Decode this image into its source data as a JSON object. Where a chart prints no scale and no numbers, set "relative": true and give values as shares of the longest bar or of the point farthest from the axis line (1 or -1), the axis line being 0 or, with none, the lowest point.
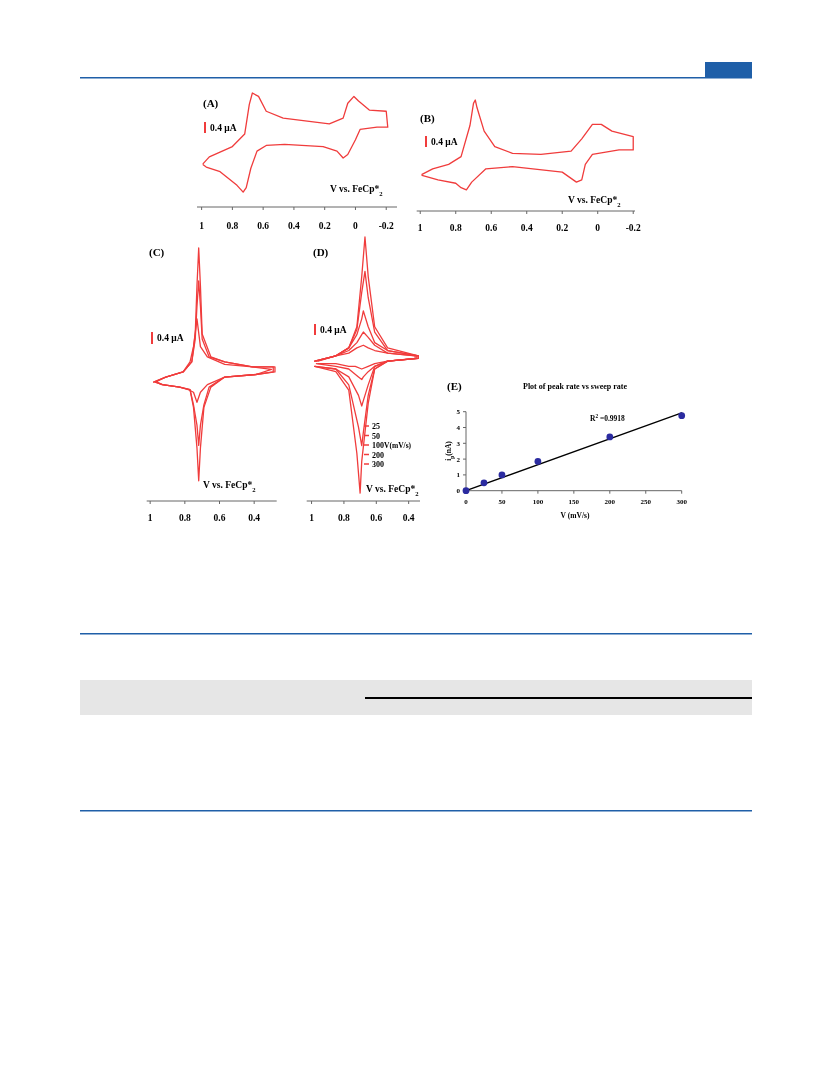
{
  "chart_data": [
    {
      "type": "line",
      "title": "(A)",
      "relative": true,
      "xlim": [
        1.03,
        -0.27
      ],
      "xticks": [
        1,
        0.8,
        0.6,
        0.4,
        0.2,
        0,
        -0.2
      ],
      "annotations": [
        "0.4 μA",
        "V vs. FeCp*$_{2}$"
      ],
      "series": [
        {
          "color": "#f03c3c",
          "x": [
            0.99,
            0.95,
            0.8,
            0.72,
            0.69,
            0.67,
            0.63,
            0.58,
            0.47,
            0.17,
            0.08,
            0.05,
            0.01,
            -0.02,
            -0.09,
            -0.2,
            -0.21,
            -0.14,
            -0.03,
            0.0,
            0.05,
            0.08,
            0.12,
            0.21,
            0.46,
            0.58,
            0.64,
            0.68,
            0.71,
            0.73,
            0.77,
            0.88,
            0.97,
            0.99
          ],
          "values": [
            0.38,
            0.44,
            0.53,
            0.64,
            0.9,
            1,
            0.97,
            0.84,
            0.78,
            0.73,
            0.78,
            0.91,
            0.97,
            0.93,
            0.85,
            0.84,
            0.7,
            0.7,
            0.68,
            0.59,
            0.46,
            0.43,
            0.49,
            0.53,
            0.55,
            0.54,
            0.49,
            0.34,
            0.17,
            0.13,
            0.19,
            0.31,
            0.35,
            0.37
          ]
        }
      ]
    },
    {
      "type": "line",
      "title": "(B)",
      "relative": true,
      "xlim": [
        1.02,
        -0.21
      ],
      "xticks": [
        1,
        0.8,
        0.6,
        0.4,
        0.2,
        0,
        -0.2
      ],
      "annotations": [
        "0.4 μA",
        "V vs. FeCp*$_{2}$"
      ],
      "series": [
        {
          "color": "#f03c3c",
          "x": [
            0.99,
            0.93,
            0.84,
            0.77,
            0.72,
            0.7,
            0.69,
            0.68,
            0.64,
            0.58,
            0.48,
            0.32,
            0.15,
            0.09,
            0.03,
            -0.02,
            -0.08,
            -0.2,
            -0.2,
            -0.12,
            0.03,
            0.07,
            0.09,
            0.12,
            0.2,
            0.48,
            0.63,
            0.71,
            0.74,
            0.77,
            0.8,
            0.9,
            0.99
          ],
          "values": [
            0.33,
            0.38,
            0.42,
            0.49,
            0.77,
            0.97,
            1,
            0.93,
            0.72,
            0.58,
            0.52,
            0.51,
            0.54,
            0.65,
            0.78,
            0.78,
            0.72,
            0.67,
            0.55,
            0.55,
            0.51,
            0.42,
            0.28,
            0.26,
            0.35,
            0.4,
            0.38,
            0.26,
            0.19,
            0.21,
            0.25,
            0.28,
            0.32
          ]
        }
      ]
    },
    {
      "type": "line",
      "title": "(C)",
      "relative": true,
      "xlim": [
        1.02,
        0.27
      ],
      "xticks": [
        1,
        0.8,
        0.6,
        0.4
      ],
      "annotations": [
        "0.4 μA",
        "V vs. FeCp*$_{2}$"
      ],
      "series": [
        {
          "color": "#f03c3c",
          "x": [
            0.98,
            0.91,
            0.81,
            0.76,
            0.74,
            0.73,
            0.72,
            0.71,
            0.7,
            0.65,
            0.57,
            0.41,
            0.28,
            0.28,
            0.39,
            0.57,
            0.65,
            0.69,
            0.71,
            0.72,
            0.73,
            0.75,
            0.77,
            0.83,
            0.93,
            0.97
          ],
          "values": [
            0.47,
            0.49,
            0.51,
            0.55,
            0.66,
            0.85,
            1,
            0.85,
            0.66,
            0.57,
            0.55,
            0.53,
            0.53,
            0.51,
            0.5,
            0.49,
            0.45,
            0.37,
            0.21,
            0.08,
            0.21,
            0.37,
            0.44,
            0.45,
            0.46,
            0.47
          ]
        },
        {
          "color": "#f03c3c",
          "x": [
            0.98,
            0.91,
            0.81,
            0.76,
            0.74,
            0.73,
            0.72,
            0.71,
            0.7,
            0.66,
            0.57,
            0.41,
            0.29,
            0.29,
            0.39,
            0.57,
            0.66,
            0.69,
            0.71,
            0.72,
            0.73,
            0.75,
            0.77,
            0.83,
            0.93,
            0.97
          ],
          "values": [
            0.47,
            0.49,
            0.51,
            0.55,
            0.64,
            0.77,
            0.87,
            0.77,
            0.64,
            0.57,
            0.55,
            0.53,
            0.53,
            0.51,
            0.5,
            0.49,
            0.45,
            0.38,
            0.3,
            0.22,
            0.3,
            0.38,
            0.44,
            0.45,
            0.46,
            0.47
          ]
        },
        {
          "color": "#f03c3c",
          "x": [
            0.97,
            0.91,
            0.81,
            0.77,
            0.75,
            0.73,
            0.71,
            0.67,
            0.57,
            0.41,
            0.3,
            0.39,
            0.57,
            0.67,
            0.71,
            0.73,
            0.75,
            0.78,
            0.83,
            0.93,
            0.96
          ],
          "values": [
            0.47,
            0.49,
            0.51,
            0.55,
            0.61,
            0.72,
            0.61,
            0.57,
            0.54,
            0.53,
            0.52,
            0.5,
            0.49,
            0.46,
            0.43,
            0.39,
            0.43,
            0.44,
            0.45,
            0.46,
            0.47
          ]
        }
      ]
    },
    {
      "type": "line",
      "title": "(D)",
      "relative": true,
      "xlim": [
        1.03,
        0.33
      ],
      "xticks": [
        1,
        0.8,
        0.6,
        0.4
      ],
      "annotations": [
        "0.4 μA",
        "V vs. FeCp*$_{2}$"
      ],
      "legend": "bottom right",
      "legend_title": "V(mV/s)",
      "series": [
        {
          "name": "25",
          "color": "#f03c3c",
          "x": [
            0.96,
            0.85,
            0.77,
            0.72,
            0.68,
            0.65,
            0.61,
            0.53,
            0.36,
            0.36,
            0.53,
            0.61,
            0.65,
            0.69,
            0.73,
            0.77,
            0.85,
            0.96
          ],
          "values": [
            0.53,
            0.55,
            0.56,
            0.58,
            0.59,
            0.58,
            0.57,
            0.56,
            0.55,
            0.54,
            0.53,
            0.52,
            0.51,
            0.5,
            0.51,
            0.51,
            0.52,
            0.52
          ]
        },
        {
          "name": "50",
          "color": "#f03c3c",
          "x": [
            0.97,
            0.85,
            0.77,
            0.72,
            0.69,
            0.68,
            0.65,
            0.61,
            0.53,
            0.35,
            0.35,
            0.53,
            0.61,
            0.65,
            0.68,
            0.69,
            0.71,
            0.77,
            0.85,
            0.97
          ],
          "values": [
            0.53,
            0.55,
            0.57,
            0.6,
            0.63,
            0.64,
            0.62,
            0.59,
            0.56,
            0.55,
            0.54,
            0.53,
            0.51,
            0.49,
            0.47,
            0.46,
            0.47,
            0.5,
            0.51,
            0.52
          ]
        },
        {
          "name": "100",
          "color": "#f03c3c",
          "x": [
            0.98,
            0.85,
            0.77,
            0.72,
            0.69,
            0.68,
            0.65,
            0.61,
            0.53,
            0.34,
            0.34,
            0.53,
            0.61,
            0.65,
            0.68,
            0.69,
            0.71,
            0.77,
            0.85,
            0.98
          ],
          "values": [
            0.53,
            0.55,
            0.58,
            0.63,
            0.69,
            0.72,
            0.66,
            0.6,
            0.57,
            0.55,
            0.54,
            0.53,
            0.51,
            0.44,
            0.38,
            0.36,
            0.4,
            0.47,
            0.5,
            0.51
          ]
        },
        {
          "name": "200",
          "color": "#f03c3c",
          "x": [
            0.98,
            0.85,
            0.77,
            0.72,
            0.69,
            0.67,
            0.65,
            0.61,
            0.53,
            0.34,
            0.34,
            0.53,
            0.61,
            0.65,
            0.68,
            0.69,
            0.71,
            0.77,
            0.85,
            0.98
          ],
          "values": [
            0.53,
            0.55,
            0.58,
            0.65,
            0.79,
            0.87,
            0.77,
            0.64,
            0.57,
            0.55,
            0.54,
            0.53,
            0.5,
            0.4,
            0.26,
            0.21,
            0.28,
            0.44,
            0.5,
            0.51
          ]
        },
        {
          "name": "300",
          "color": "#f03c3c",
          "x": [
            0.98,
            0.85,
            0.77,
            0.72,
            0.69,
            0.67,
            0.65,
            0.61,
            0.53,
            0.34,
            0.34,
            0.53,
            0.61,
            0.65,
            0.69,
            0.7,
            0.72,
            0.77,
            0.85,
            0.98
          ],
          "values": [
            0.53,
            0.55,
            0.58,
            0.66,
            0.85,
            1,
            0.85,
            0.66,
            0.58,
            0.55,
            0.54,
            0.53,
            0.5,
            0.37,
            0.15,
            0.03,
            0.18,
            0.42,
            0.49,
            0.51
          ]
        }
      ]
    },
    {
      "type": "scatter",
      "title": "Plot of peak rate vs sweep rate",
      "xlabel": "V (mV/s)",
      "ylabel": "i$_{p}$(nA)",
      "xlim": [
        0,
        300
      ],
      "xticks": [
        0,
        50,
        100,
        150,
        200,
        250,
        300
      ],
      "ylim": [
        0,
        5
      ],
      "yticks": [
        0,
        1,
        2,
        3,
        4,
        5
      ],
      "annotations": [
        "(E)",
        "R$^{2}$ =0.9918"
      ],
      "series": [
        {
          "type": "line",
          "color": "#000000",
          "marker": "none",
          "x": [
            0,
            300
          ],
          "values": [
            0,
            4.93
          ]
        },
        {
          "color": "#2b2ba0",
          "marker": "circle",
          "x": [
            0,
            25,
            50,
            100,
            200,
            300
          ],
          "values": [
            0,
            0.5,
            1.0,
            1.85,
            3.4,
            4.75
          ]
        }
      ]
    }
  ]
}
